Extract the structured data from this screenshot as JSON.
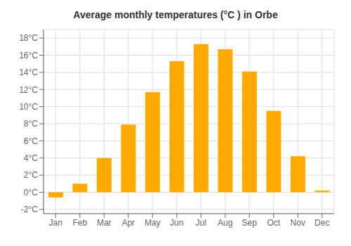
{
  "chart_data": {
    "type": "bar",
    "title": "Average monthly temperatures (°C ) in Orbe",
    "categories": [
      "Jan",
      "Feb",
      "Mar",
      "Apr",
      "May",
      "Jun",
      "Jul",
      "Aug",
      "Sep",
      "Oct",
      "Nov",
      "Dec"
    ],
    "values": [
      -0.6,
      1.0,
      4.0,
      7.9,
      11.7,
      15.3,
      17.3,
      16.7,
      14.1,
      9.5,
      4.2,
      0.2
    ],
    "color": "#FFAA00",
    "ylim": [
      -2.5,
      19
    ],
    "yticks": [
      {
        "value": -2,
        "label": "-2°C"
      },
      {
        "value": 0,
        "label": "0°C"
      },
      {
        "value": 2,
        "label": "2°C"
      },
      {
        "value": 4,
        "label": "4°C"
      },
      {
        "value": 6,
        "label": "6°C"
      },
      {
        "value": 8,
        "label": "8°C"
      },
      {
        "value": 10,
        "label": "10°C"
      },
      {
        "value": 12,
        "label": "12°C"
      },
      {
        "value": 14,
        "label": "14°C"
      },
      {
        "value": 16,
        "label": "16°C"
      },
      {
        "value": 18,
        "label": "18°C"
      }
    ],
    "grid": true
  }
}
